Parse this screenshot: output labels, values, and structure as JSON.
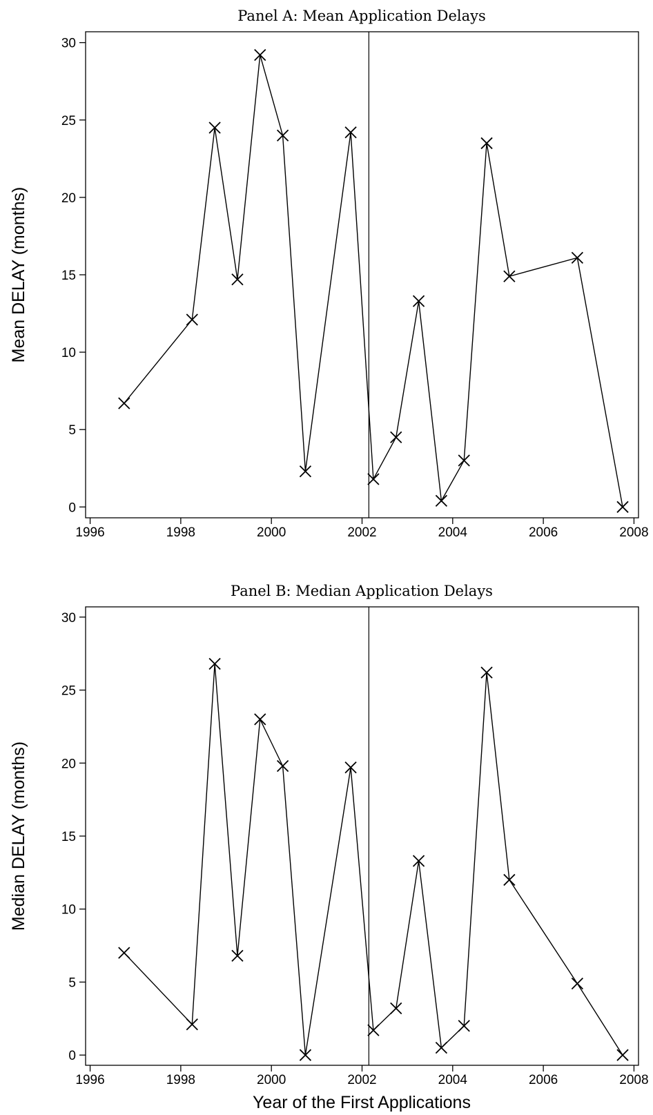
{
  "chart_data": [
    {
      "type": "line",
      "title": "Panel A: Mean Application Delays",
      "ylabel": "Mean DELAY (months)",
      "xlabel": "",
      "xlim": [
        1995.9,
        2008.1
      ],
      "ylim": [
        -0.7,
        30.7
      ],
      "xticks": [
        1996,
        1998,
        2000,
        2002,
        2004,
        2006,
        2008
      ],
      "yticks": [
        0,
        5,
        10,
        15,
        20,
        25,
        30
      ],
      "vertical_line_x": 2002.15,
      "grid": false,
      "marker": "x",
      "series": [
        {
          "points": [
            [
              1996.75,
              6.7
            ],
            [
              1998.25,
              12.1
            ],
            [
              1998.75,
              24.5
            ],
            [
              1999.25,
              14.7
            ],
            [
              1999.75,
              29.2
            ],
            [
              2000.25,
              24.0
            ],
            [
              2000.75,
              2.3
            ],
            [
              2001.75,
              24.2
            ],
            [
              2002.25,
              1.8
            ],
            [
              2002.75,
              4.5
            ],
            [
              2003.25,
              13.3
            ],
            [
              2003.75,
              0.4
            ],
            [
              2004.25,
              3.0
            ],
            [
              2004.75,
              23.5
            ],
            [
              2005.25,
              14.9
            ],
            [
              2006.75,
              16.1
            ],
            [
              2007.75,
              0.0
            ]
          ]
        }
      ]
    },
    {
      "type": "line",
      "title": "Panel B: Median Application Delays",
      "ylabel": "Median DELAY (months)",
      "xlabel": "Year of the First Applications",
      "xlim": [
        1995.9,
        2008.1
      ],
      "ylim": [
        -0.7,
        30.7
      ],
      "xticks": [
        1996,
        1998,
        2000,
        2002,
        2004,
        2006,
        2008
      ],
      "yticks": [
        0,
        5,
        10,
        15,
        20,
        25,
        30
      ],
      "vertical_line_x": 2002.15,
      "grid": false,
      "marker": "x",
      "series": [
        {
          "points": [
            [
              1996.75,
              7.0
            ],
            [
              1998.25,
              2.1
            ],
            [
              1998.75,
              26.8
            ],
            [
              1999.25,
              6.8
            ],
            [
              1999.75,
              23.0
            ],
            [
              2000.25,
              19.8
            ],
            [
              2000.75,
              0.0
            ],
            [
              2001.75,
              19.7
            ],
            [
              2002.25,
              1.7
            ],
            [
              2002.75,
              3.2
            ],
            [
              2003.25,
              13.3
            ],
            [
              2003.75,
              0.5
            ],
            [
              2004.25,
              2.0
            ],
            [
              2004.75,
              26.2
            ],
            [
              2005.25,
              12.0
            ],
            [
              2006.75,
              4.9
            ],
            [
              2007.75,
              0.0
            ]
          ]
        }
      ]
    }
  ]
}
